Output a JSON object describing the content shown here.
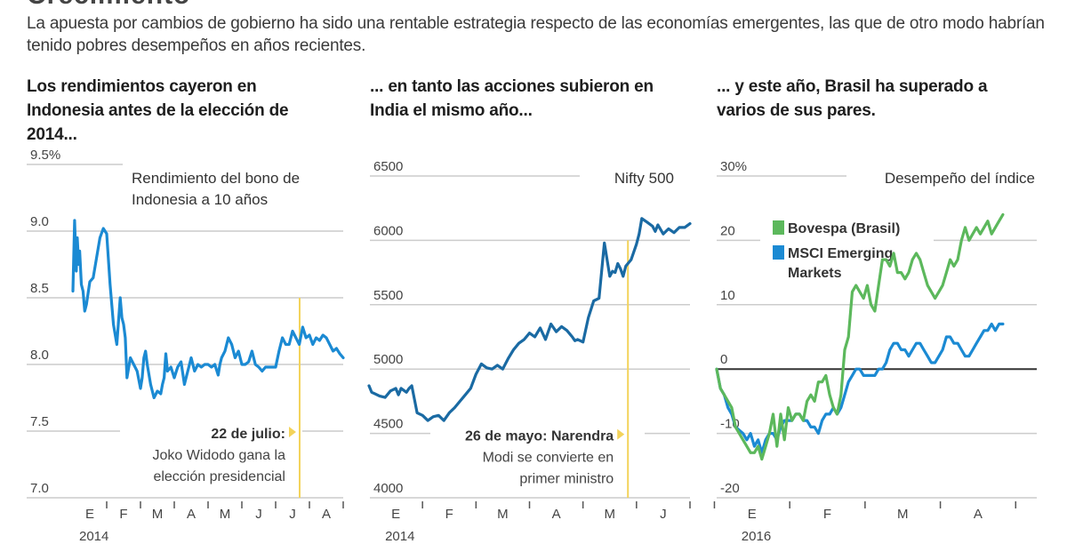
{
  "header": {
    "clipped_title": "Crecimiento",
    "intro": "La apuesta por cambios de gobierno ha sido una rentable estrategia respecto de las economías emergentes, las que de otro modo habrían tenido pobres desempeños en años recientes."
  },
  "colors": {
    "indonesia_line": "#1b8ad3",
    "india_line": "#1a6aa3",
    "bovespa_line": "#5cb85c",
    "msci_line": "#1b8ad3",
    "event_marker": "#f3d35a",
    "gridline": "#cccccc",
    "zero_line": "#333333"
  },
  "chart_data": [
    {
      "id": "indonesia",
      "type": "line",
      "title": "Los rendimientos cayeron en Indonesia antes de la elección de 2014...",
      "series_label": [
        "Rendimiento del bono de",
        "Indonesia a 10 años"
      ],
      "xlabel": "",
      "ylabel": "",
      "ylim": [
        7.0,
        9.5
      ],
      "yticks": [
        7.0,
        7.5,
        8.0,
        8.5,
        9.0,
        9.5
      ],
      "ytick_labels": [
        "7.0",
        "7.5",
        "8.0",
        "8.5",
        "9.0",
        "9.5%"
      ],
      "xlim": [
        0,
        8
      ],
      "xticks": [
        {
          "label": "E",
          "pos": 0.5
        },
        {
          "label": "F",
          "pos": 1.5
        },
        {
          "label": "M",
          "pos": 2.5
        },
        {
          "label": "A",
          "pos": 3.5
        },
        {
          "label": "M",
          "pos": 4.5
        },
        {
          "label": "J",
          "pos": 5.5
        },
        {
          "label": "J",
          "pos": 6.5
        },
        {
          "label": "A",
          "pos": 7.5
        }
      ],
      "x_year_label": "2014",
      "grid": true,
      "event": {
        "x": 6.71,
        "date_label": "22 de julio:",
        "text": [
          "Joko Widodo gana la",
          "elección presidencial"
        ]
      },
      "series": [
        {
          "name": "Rendimiento del bono de Indonesia a 10 años",
          "x": [
            0.0,
            0.05,
            0.1,
            0.13,
            0.17,
            0.2,
            0.25,
            0.3,
            0.35,
            0.4,
            0.5,
            0.6,
            0.7,
            0.8,
            0.9,
            1.0,
            1.1,
            1.2,
            1.3,
            1.4,
            1.45,
            1.5,
            1.55,
            1.6,
            1.7,
            1.8,
            1.9,
            2.0,
            2.05,
            2.1,
            2.15,
            2.2,
            2.3,
            2.4,
            2.5,
            2.6,
            2.65,
            2.7,
            2.75,
            2.8,
            2.9,
            3.0,
            3.1,
            3.2,
            3.3,
            3.4,
            3.5,
            3.6,
            3.7,
            3.8,
            3.9,
            4.0,
            4.1,
            4.2,
            4.3,
            4.35,
            4.4,
            4.5,
            4.6,
            4.7,
            4.8,
            4.9,
            5.0,
            5.1,
            5.2,
            5.3,
            5.4,
            5.5,
            5.6,
            5.7,
            5.8,
            5.9,
            6.0,
            6.1,
            6.2,
            6.3,
            6.4,
            6.5,
            6.6,
            6.7,
            6.8,
            6.9,
            7.0,
            7.1,
            7.2,
            7.3,
            7.4,
            7.5,
            7.6,
            7.7,
            7.8,
            7.9,
            8.0
          ],
          "y": [
            8.55,
            9.08,
            8.7,
            8.95,
            8.75,
            8.85,
            8.6,
            8.55,
            8.4,
            8.45,
            8.62,
            8.65,
            8.8,
            8.95,
            9.02,
            8.98,
            8.6,
            8.3,
            8.15,
            8.5,
            8.35,
            8.3,
            8.2,
            7.9,
            8.05,
            8.0,
            7.95,
            7.82,
            7.9,
            8.05,
            8.1,
            8.0,
            7.85,
            7.75,
            7.8,
            7.78,
            7.85,
            7.9,
            8.08,
            7.95,
            7.98,
            7.9,
            7.98,
            8.02,
            7.85,
            7.95,
            8.05,
            7.95,
            8.0,
            7.98,
            8.0,
            8.0,
            7.98,
            8.0,
            7.92,
            8.0,
            8.05,
            8.1,
            8.2,
            8.15,
            8.05,
            8.1,
            8.0,
            8.0,
            8.02,
            8.1,
            8.0,
            7.98,
            7.95,
            7.98,
            7.98,
            7.98,
            7.98,
            8.1,
            8.2,
            8.15,
            8.15,
            8.25,
            8.2,
            8.15,
            8.28,
            8.2,
            8.22,
            8.15,
            8.2,
            8.18,
            8.22,
            8.2,
            8.15,
            8.1,
            8.12,
            8.08,
            8.05
          ]
        }
      ]
    },
    {
      "id": "india",
      "type": "line",
      "title": "... en tanto las acciones subieron en India el mismo año...",
      "series_label": [
        "Nifty 500"
      ],
      "xlabel": "",
      "ylabel": "",
      "ylim": [
        4000,
        6500
      ],
      "yticks": [
        4000,
        4500,
        5000,
        5500,
        6000,
        6500
      ],
      "ytick_labels": [
        "4000",
        "4500",
        "5000",
        "5500",
        "6000",
        "6500"
      ],
      "xlim": [
        0,
        6
      ],
      "xticks": [
        {
          "label": "E",
          "pos": 0.5
        },
        {
          "label": "F",
          "pos": 1.5
        },
        {
          "label": "M",
          "pos": 2.5
        },
        {
          "label": "A",
          "pos": 3.5
        },
        {
          "label": "M",
          "pos": 4.5
        },
        {
          "label": "J",
          "pos": 5.5
        }
      ],
      "x_year_label": "2014",
      "grid": true,
      "event": {
        "x": 4.84,
        "date_label": "26 de mayo: Narendra",
        "text": [
          "Modi se convierte en",
          "primer ministro"
        ]
      },
      "series": [
        {
          "name": "Nifty 500",
          "x": [
            0.0,
            0.05,
            0.1,
            0.2,
            0.3,
            0.4,
            0.5,
            0.55,
            0.6,
            0.7,
            0.75,
            0.8,
            0.9,
            1.0,
            1.05,
            1.1,
            1.2,
            1.3,
            1.4,
            1.5,
            1.6,
            1.7,
            1.8,
            1.9,
            2.0,
            2.1,
            2.2,
            2.3,
            2.4,
            2.5,
            2.6,
            2.7,
            2.8,
            2.9,
            3.0,
            3.1,
            3.2,
            3.3,
            3.4,
            3.5,
            3.6,
            3.7,
            3.8,
            3.85,
            3.9,
            4.0,
            4.1,
            4.2,
            4.3,
            4.4,
            4.5,
            4.55,
            4.6,
            4.65,
            4.7,
            4.75,
            4.8,
            4.9,
            5.0,
            5.05,
            5.1,
            5.2,
            5.3,
            5.35,
            5.4,
            5.5,
            5.6,
            5.7,
            5.8,
            5.9,
            6.0
          ],
          "y": [
            4870,
            4820,
            4810,
            4790,
            4780,
            4830,
            4850,
            4800,
            4850,
            4820,
            4850,
            4870,
            4660,
            4640,
            4620,
            4600,
            4630,
            4640,
            4600,
            4660,
            4700,
            4750,
            4800,
            4850,
            4960,
            5040,
            5010,
            5000,
            5030,
            5000,
            5080,
            5150,
            5200,
            5230,
            5280,
            5250,
            5320,
            5230,
            5350,
            5290,
            5330,
            5300,
            5250,
            5220,
            5230,
            5210,
            5400,
            5530,
            5550,
            5980,
            5720,
            5760,
            5750,
            5820,
            5780,
            5720,
            5800,
            5850,
            5970,
            6050,
            6170,
            6140,
            6110,
            6070,
            6120,
            6050,
            6090,
            6060,
            6100,
            6100,
            6130
          ]
        }
      ]
    },
    {
      "id": "brasil",
      "type": "line",
      "title": "... y este año, Brasil ha superado a varios de sus pares.",
      "series_label": [
        "Desempeño del índice"
      ],
      "xlabel": "",
      "ylabel": "",
      "ylim": [
        -20,
        30
      ],
      "yticks": [
        -20,
        -10,
        0,
        10,
        20,
        30
      ],
      "ytick_labels": [
        "-20",
        "-10",
        "0",
        "10",
        "20",
        "30%"
      ],
      "xlim": [
        0,
        4.25
      ],
      "xticks": [
        {
          "label": "E",
          "pos": 0.47
        },
        {
          "label": "F",
          "pos": 1.47
        },
        {
          "label": "M",
          "pos": 2.47
        },
        {
          "label": "A",
          "pos": 3.47
        }
      ],
      "x_year_label": "2016",
      "grid": true,
      "legend": {
        "placement": "top-left",
        "entries": [
          {
            "name": "Bovespa (Brasil)",
            "color": "#5cb85c"
          },
          {
            "name": "MSCI Emerging Markets",
            "color": "#1b8ad3"
          }
        ]
      },
      "series": [
        {
          "name": "Bovespa (Brasil)",
          "x": [
            0.0,
            0.05,
            0.1,
            0.15,
            0.2,
            0.25,
            0.3,
            0.35,
            0.4,
            0.45,
            0.5,
            0.55,
            0.6,
            0.65,
            0.7,
            0.75,
            0.8,
            0.85,
            0.9,
            0.95,
            1.0,
            1.05,
            1.1,
            1.15,
            1.2,
            1.25,
            1.3,
            1.35,
            1.4,
            1.45,
            1.5,
            1.55,
            1.6,
            1.65,
            1.7,
            1.75,
            1.8,
            1.85,
            1.9,
            1.95,
            2.0,
            2.05,
            2.1,
            2.15,
            2.2,
            2.25,
            2.3,
            2.35,
            2.4,
            2.45,
            2.5,
            2.55,
            2.6,
            2.65,
            2.7,
            2.75,
            2.8,
            2.85,
            2.9,
            2.95,
            3.0,
            3.05,
            3.1,
            3.15,
            3.2,
            3.25,
            3.3,
            3.35,
            3.4,
            3.45,
            3.5,
            3.55,
            3.6,
            3.65,
            3.7,
            3.75,
            3.8
          ],
          "y": [
            0,
            -3,
            -4,
            -5,
            -6,
            -9,
            -10,
            -11,
            -12,
            -13,
            -13,
            -12,
            -14,
            -12,
            -10,
            -7,
            -12,
            -7,
            -11,
            -6,
            -8,
            -7,
            -7,
            -8,
            -5,
            -4,
            -5,
            -2,
            -2,
            -1,
            -4,
            -6,
            -7,
            -4,
            3,
            5,
            12,
            13,
            12,
            11,
            13,
            10,
            9,
            13,
            17,
            17,
            16,
            18,
            15,
            15,
            14,
            15,
            17,
            18,
            17,
            15,
            13,
            12,
            11,
            12,
            13,
            15,
            17,
            16,
            17,
            20,
            22,
            20,
            21,
            22,
            21,
            22,
            23,
            21,
            22,
            23,
            24
          ]
        },
        {
          "name": "MSCI Emerging Markets",
          "x": [
            0.0,
            0.05,
            0.1,
            0.15,
            0.2,
            0.25,
            0.3,
            0.35,
            0.4,
            0.45,
            0.5,
            0.55,
            0.6,
            0.65,
            0.7,
            0.75,
            0.8,
            0.85,
            0.9,
            0.95,
            1.0,
            1.05,
            1.1,
            1.15,
            1.2,
            1.25,
            1.3,
            1.35,
            1.4,
            1.45,
            1.5,
            1.55,
            1.6,
            1.65,
            1.7,
            1.75,
            1.8,
            1.85,
            1.9,
            1.95,
            2.0,
            2.05,
            2.1,
            2.15,
            2.2,
            2.25,
            2.3,
            2.35,
            2.4,
            2.45,
            2.5,
            2.55,
            2.6,
            2.65,
            2.7,
            2.75,
            2.8,
            2.85,
            2.9,
            2.95,
            3.0,
            3.05,
            3.1,
            3.15,
            3.2,
            3.25,
            3.3,
            3.35,
            3.4,
            3.45,
            3.5,
            3.55,
            3.6,
            3.65,
            3.7,
            3.75,
            3.8
          ],
          "y": [
            0,
            -3,
            -4,
            -6,
            -7,
            -9,
            -9.5,
            -10,
            -11,
            -10,
            -12,
            -11,
            -13,
            -11,
            -10,
            -10,
            -11,
            -9,
            -8,
            -8,
            -8,
            -7,
            -7,
            -8,
            -8,
            -9,
            -9,
            -10,
            -8,
            -7,
            -7,
            -6,
            -7,
            -6,
            -4,
            -2,
            -1,
            0,
            0,
            -1,
            -1,
            -1,
            -1,
            0,
            0,
            1,
            3,
            4,
            4,
            3,
            3,
            2,
            3,
            4,
            4,
            3,
            2,
            1,
            1,
            2,
            3,
            5,
            5,
            4,
            4,
            3,
            2,
            2,
            3,
            4,
            5,
            6,
            6,
            7,
            6,
            7,
            7
          ]
        }
      ]
    }
  ]
}
